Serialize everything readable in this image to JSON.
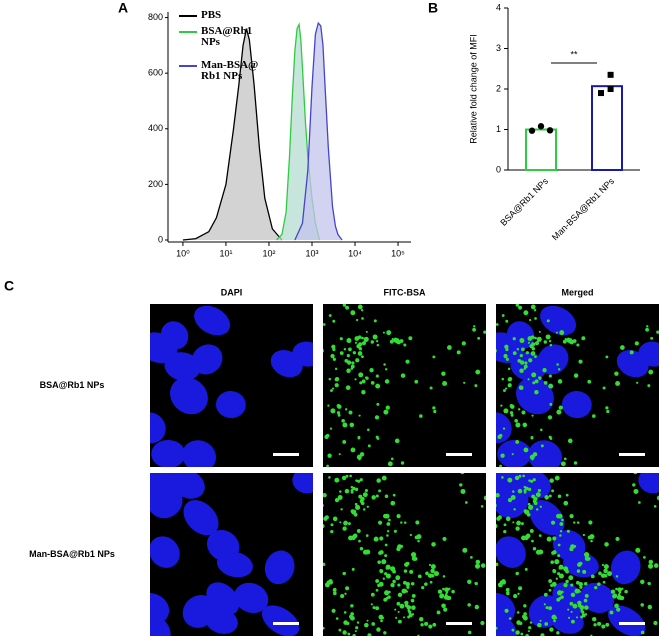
{
  "chart_data": [
    {
      "type": "area",
      "panel": "A",
      "xscale": "log",
      "xlim": [
        0.45,
        200000
      ],
      "ylim": [
        0,
        820
      ],
      "xticks": [
        {
          "value": 1,
          "label": "10⁰"
        },
        {
          "value": 10,
          "label": "10¹"
        },
        {
          "value": 100,
          "label": "10²"
        },
        {
          "value": 1000,
          "label": "10³"
        },
        {
          "value": 10000,
          "label": "10⁴"
        },
        {
          "value": 100000,
          "label": "10⁵"
        }
      ],
      "yticks": [
        0,
        200,
        400,
        600,
        800
      ],
      "series": [
        {
          "name": "PBS",
          "color": "#000000",
          "fill": "#c4c4c4",
          "x": [
            1,
            2,
            4,
            6,
            10,
            15,
            20,
            25,
            30,
            35,
            45,
            60,
            80,
            120,
            200
          ],
          "values": [
            0,
            5,
            30,
            80,
            200,
            400,
            560,
            700,
            760,
            720,
            560,
            330,
            150,
            40,
            0
          ]
        },
        {
          "name": "BSA@Rb1 NPs",
          "color": "#2ecc40",
          "fill": "#b5dcd2",
          "x": [
            150,
            200,
            250,
            300,
            350,
            400,
            450,
            500,
            550,
            600,
            700,
            800,
            1000,
            1200,
            1500
          ],
          "values": [
            0,
            20,
            100,
            300,
            520,
            680,
            760,
            775,
            720,
            620,
            430,
            300,
            150,
            60,
            0
          ]
        },
        {
          "name": "Man-BSA@Rb1 NPs",
          "color": "#4444cc",
          "fill": "#c3c3ec",
          "x": [
            400,
            600,
            800,
            1000,
            1200,
            1400,
            1600,
            1800,
            2000,
            2400,
            3000,
            3500,
            4000,
            5000
          ],
          "values": [
            0,
            60,
            250,
            550,
            740,
            780,
            770,
            700,
            560,
            330,
            120,
            50,
            20,
            0
          ]
        }
      ]
    },
    {
      "type": "bar",
      "panel": "B",
      "ylabel": "Relative fold change of MFI",
      "categories": [
        "BSA@Rb1 NPs",
        "Man-BSA@Rb1 NPs"
      ],
      "values": [
        1.0,
        2.07
      ],
      "colors": [
        "#2ecc40",
        "#1a1aaa"
      ],
      "points": [
        [
          0.97,
          1.08,
          0.98
        ],
        [
          1.9,
          2.35,
          2.0
        ]
      ],
      "annotation": "**",
      "ylim": [
        0,
        4
      ],
      "yticks": [
        0,
        1,
        2,
        3,
        4
      ]
    }
  ],
  "figure_c": {
    "panel": "C",
    "columns": [
      "DAPI",
      "FITC-BSA",
      "Merged"
    ],
    "rows": [
      "BSA@Rb1 NPs",
      "Man-BSA@Rb1 NPs"
    ]
  }
}
